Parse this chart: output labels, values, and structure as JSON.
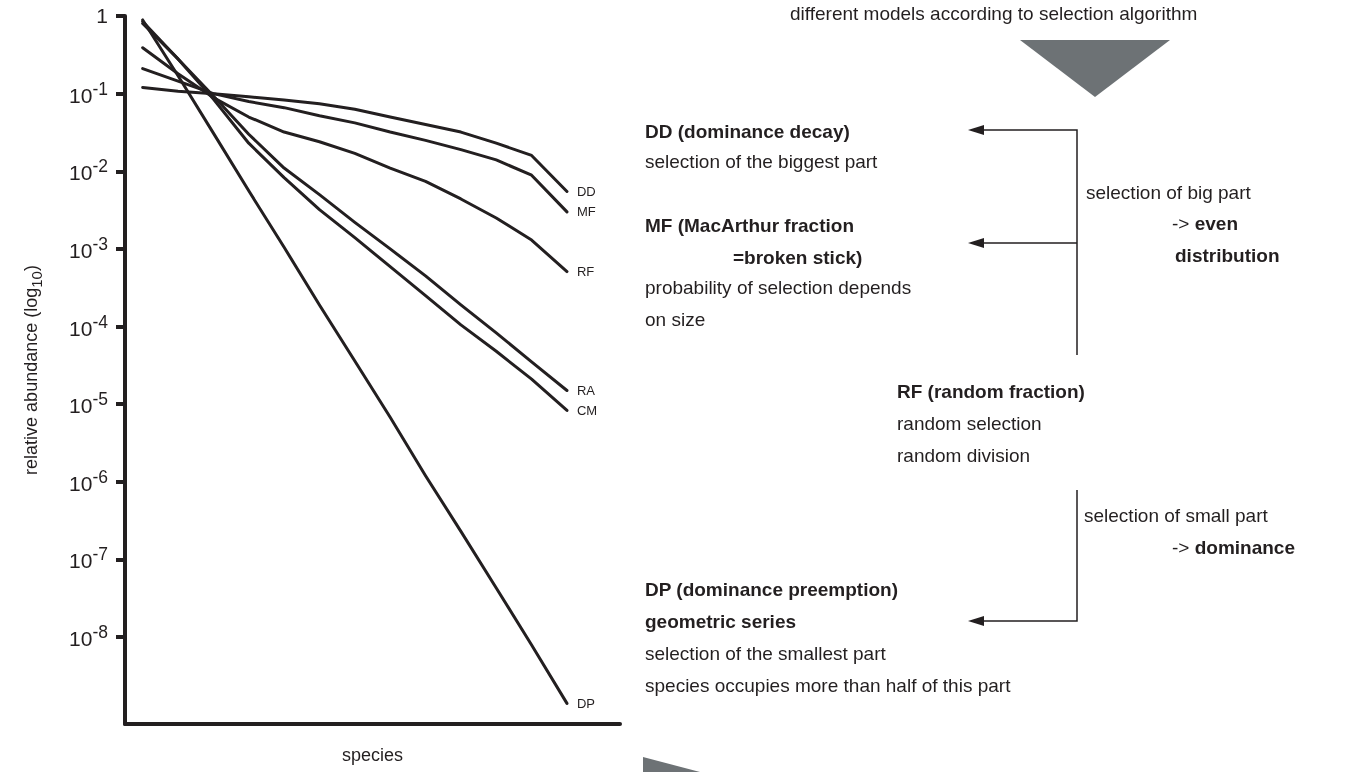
{
  "chart_data": {
    "type": "line",
    "xlabel": "species",
    "ylabel": "relative abundance (log$_{10}$)",
    "categories": [
      null,
      null,
      null,
      null,
      null,
      null,
      null,
      null,
      null,
      null,
      null,
      null,
      null,
      null
    ],
    "series": [
      {
        "name": "DD",
        "color": "#231f20",
        "values": [
          0.12,
          0.107,
          0.1,
          0.091,
          0.083,
          0.074,
          0.063,
          0.05,
          0.04,
          0.032,
          0.023,
          0.016,
          0.0055,
          null
        ]
      },
      {
        "name": "MF",
        "color": "#231f20",
        "values": [
          0.21,
          0.145,
          0.1,
          0.079,
          0.066,
          0.052,
          0.042,
          0.032,
          0.025,
          0.019,
          0.014,
          0.0089,
          0.003,
          null
        ]
      },
      {
        "name": "RF",
        "color": "#231f20",
        "values": [
          0.39,
          0.18,
          0.089,
          0.05,
          0.032,
          0.024,
          0.017,
          0.011,
          0.0074,
          0.0044,
          0.0025,
          0.0013,
          0.00051,
          null
        ]
      },
      {
        "name": "RA",
        "color": "#231f20",
        "values": [
          0.85,
          0.28,
          0.093,
          0.03,
          0.011,
          0.005,
          0.0022,
          0.001,
          0.00045,
          0.00019,
          8.3e-05,
          3.5e-05,
          1.5e-05,
          null
        ]
      },
      {
        "name": "CM",
        "color": "#231f20",
        "values": [
          0.8,
          0.28,
          0.085,
          0.023,
          0.0083,
          0.0032,
          0.0014,
          0.00059,
          0.00025,
          0.000105,
          4.8e-05,
          2.1e-05,
          8.3e-06,
          null
        ]
      },
      {
        "name": "DP",
        "color": "#231f20",
        "values": [
          0.89,
          0.17,
          0.031,
          0.0056,
          0.00105,
          0.00019,
          3.6e-05,
          6.8e-06,
          1.2e-06,
          2.3e-07,
          4.3e-08,
          7.9e-09,
          1.4e-09,
          null
        ]
      }
    ],
    "ylim": [
      7.6e-10,
      1
    ],
    "yticks": [
      1,
      {
        "value": 0.1,
        "label": "10$^{-1}$"
      },
      {
        "value": 0.01,
        "label": "10$^{-2}$"
      },
      {
        "value": 0.001,
        "label": "10$^{-3}$"
      },
      {
        "value": 0.0001,
        "label": "10$^{-4}$"
      },
      {
        "value": 1e-05,
        "label": "10$^{-5}$"
      },
      {
        "value": 1e-06,
        "label": "10$^{-6}$"
      },
      {
        "value": 1e-07,
        "label": "10$^{-7}$"
      },
      {
        "value": 1e-08,
        "label": "10$^{-8}$"
      }
    ],
    "log": true,
    "grid": false,
    "marker": "none",
    "line_style": "solid",
    "annotations": [
      "different models according to selection algorithm",
      "DD (dominance decay)",
      "selection of the biggest part",
      "MF (MacArthur fraction",
      "=broken stick)",
      "probability of selection depends",
      "on size",
      "selection of big part",
      "-> even",
      "distribution",
      "RF (random fraction)",
      "random selection",
      "random division",
      "selection of small part",
      "-> dominance",
      "DP (dominance preemption)",
      "geometric series",
      "selection of the smallest part",
      "species occupies more than half of this part"
    ]
  }
}
